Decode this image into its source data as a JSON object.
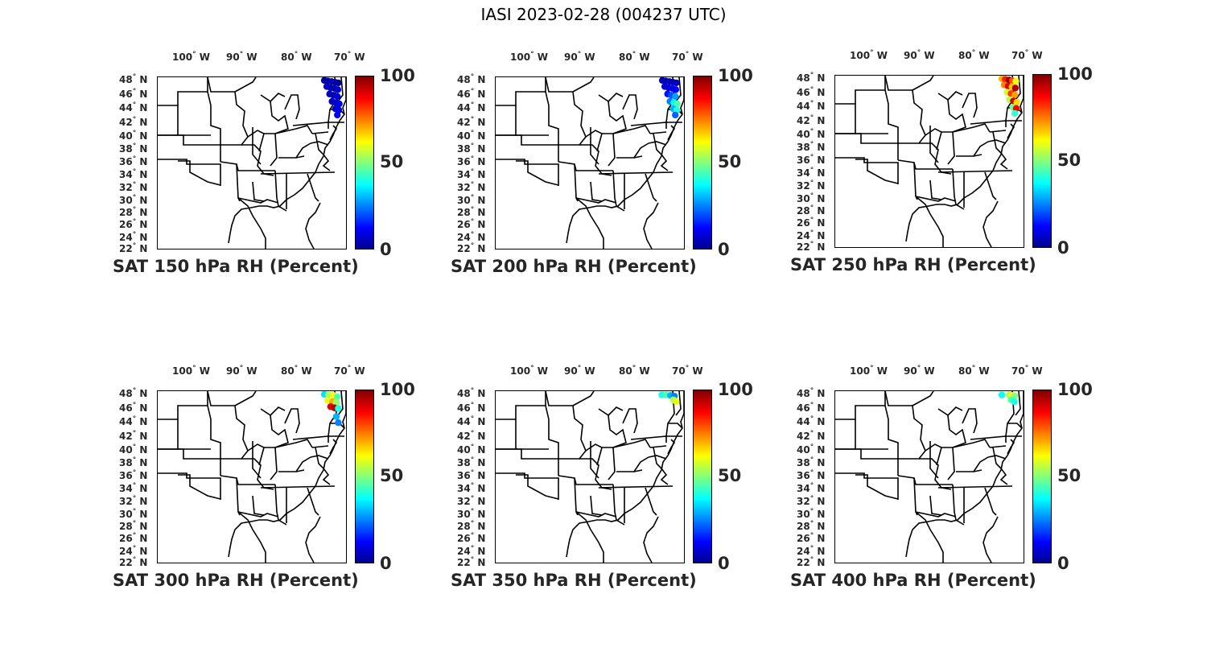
{
  "title": "IASI 2023-02-28 (004237 UTC)",
  "lon_ticks": [
    {
      "deg": "100",
      "hemi": "W"
    },
    {
      "deg": "90",
      "hemi": "W"
    },
    {
      "deg": "80",
      "hemi": "W"
    },
    {
      "deg": "70",
      "hemi": "W"
    }
  ],
  "lat_ticks": [
    {
      "deg": "48",
      "hemi": "N"
    },
    {
      "deg": "46",
      "hemi": "N"
    },
    {
      "deg": "44",
      "hemi": "N"
    },
    {
      "deg": "42",
      "hemi": "N"
    },
    {
      "deg": "40",
      "hemi": "N"
    },
    {
      "deg": "38",
      "hemi": "N"
    },
    {
      "deg": "36",
      "hemi": "N"
    },
    {
      "deg": "34",
      "hemi": "N"
    },
    {
      "deg": "32",
      "hemi": "N"
    },
    {
      "deg": "30",
      "hemi": "N"
    },
    {
      "deg": "28",
      "hemi": "N"
    },
    {
      "deg": "26",
      "hemi": "N"
    },
    {
      "deg": "24",
      "hemi": "N"
    },
    {
      "deg": "22",
      "hemi": "N"
    }
  ],
  "colorbar": {
    "labels": [
      "100",
      "50",
      "0"
    ],
    "range": [
      0,
      100
    ],
    "colormap": "jet"
  },
  "panels": [
    {
      "title": "SAT 150 hPa RH (Percent)"
    },
    {
      "title": "SAT 200 hPa RH (Percent)"
    },
    {
      "title": "SAT 250 hPa RH (Percent)"
    },
    {
      "title": "SAT 300 hPa RH (Percent)"
    },
    {
      "title": "SAT 350 hPa RH (Percent)"
    },
    {
      "title": "SAT 400 hPa RH (Percent)"
    }
  ],
  "chart_data": [
    {
      "type": "scatter",
      "level_hPa": 150,
      "series": [
        {
          "values": [
            {
              "lon": -71.5,
              "lat": 49.2,
              "rh": 3
            },
            {
              "lon": -70.8,
              "lat": 49.1,
              "rh": 4
            },
            {
              "lon": -70.0,
              "lat": 49.0,
              "rh": 5
            },
            {
              "lon": -69.3,
              "lat": 48.9,
              "rh": 4
            },
            {
              "lon": -68.6,
              "lat": 48.8,
              "rh": 3
            },
            {
              "lon": -71.0,
              "lat": 48.2,
              "rh": 6
            },
            {
              "lon": -70.2,
              "lat": 48.0,
              "rh": 5
            },
            {
              "lon": -69.4,
              "lat": 47.9,
              "rh": 4
            },
            {
              "lon": -68.7,
              "lat": 47.7,
              "rh": 7
            },
            {
              "lon": -70.4,
              "lat": 47.0,
              "rh": 6
            },
            {
              "lon": -69.6,
              "lat": 46.8,
              "rh": 5
            },
            {
              "lon": -68.8,
              "lat": 46.6,
              "rh": 8
            },
            {
              "lon": -69.9,
              "lat": 45.8,
              "rh": 6
            },
            {
              "lon": -69.1,
              "lat": 45.6,
              "rh": 7
            },
            {
              "lon": -68.4,
              "lat": 45.4,
              "rh": 10
            },
            {
              "lon": -69.2,
              "lat": 44.6,
              "rh": 8
            },
            {
              "lon": -68.5,
              "lat": 44.4,
              "rh": 9
            },
            {
              "lon": -68.8,
              "lat": 43.6,
              "rh": 12
            }
          ]
        }
      ]
    },
    {
      "type": "scatter",
      "level_hPa": 200,
      "series": [
        {
          "values": [
            {
              "lon": -71.5,
              "lat": 49.2,
              "rh": 5
            },
            {
              "lon": -70.8,
              "lat": 49.1,
              "rh": 6
            },
            {
              "lon": -70.0,
              "lat": 49.0,
              "rh": 7
            },
            {
              "lon": -69.3,
              "lat": 48.9,
              "rh": 5
            },
            {
              "lon": -68.6,
              "lat": 48.8,
              "rh": 6
            },
            {
              "lon": -71.0,
              "lat": 48.2,
              "rh": 8
            },
            {
              "lon": -70.2,
              "lat": 48.0,
              "rh": 9
            },
            {
              "lon": -69.4,
              "lat": 47.9,
              "rh": 10
            },
            {
              "lon": -68.7,
              "lat": 47.7,
              "rh": 12
            },
            {
              "lon": -70.4,
              "lat": 47.0,
              "rh": 14
            },
            {
              "lon": -69.6,
              "lat": 46.8,
              "rh": 20
            },
            {
              "lon": -68.8,
              "lat": 46.6,
              "rh": 28
            },
            {
              "lon": -69.9,
              "lat": 45.8,
              "rh": 25
            },
            {
              "lon": -69.1,
              "lat": 45.6,
              "rh": 38
            },
            {
              "lon": -68.4,
              "lat": 45.4,
              "rh": 45
            },
            {
              "lon": -69.2,
              "lat": 44.6,
              "rh": 30
            },
            {
              "lon": -68.5,
              "lat": 44.4,
              "rh": 40
            },
            {
              "lon": -68.8,
              "lat": 43.6,
              "rh": 22
            }
          ]
        }
      ]
    },
    {
      "type": "scatter",
      "level_hPa": 250,
      "series": [
        {
          "values": [
            {
              "lon": -71.5,
              "lat": 49.2,
              "rh": 70
            },
            {
              "lon": -70.8,
              "lat": 49.1,
              "rh": 85
            },
            {
              "lon": -70.0,
              "lat": 49.0,
              "rh": 98
            },
            {
              "lon": -69.3,
              "lat": 48.9,
              "rh": 80
            },
            {
              "lon": -68.6,
              "lat": 48.8,
              "rh": 62
            },
            {
              "lon": -71.0,
              "lat": 48.2,
              "rh": 75
            },
            {
              "lon": -70.2,
              "lat": 48.0,
              "rh": 90
            },
            {
              "lon": -69.4,
              "lat": 47.9,
              "rh": 68
            },
            {
              "lon": -68.7,
              "lat": 47.7,
              "rh": 95
            },
            {
              "lon": -70.4,
              "lat": 47.0,
              "rh": 58
            },
            {
              "lon": -69.6,
              "lat": 46.8,
              "rh": 82
            },
            {
              "lon": -68.8,
              "lat": 46.6,
              "rh": 72
            },
            {
              "lon": -69.9,
              "lat": 45.8,
              "rh": 55
            },
            {
              "lon": -69.1,
              "lat": 45.6,
              "rh": 92
            },
            {
              "lon": -68.4,
              "lat": 45.4,
              "rh": 66
            },
            {
              "lon": -69.2,
              "lat": 44.6,
              "rh": 48
            },
            {
              "lon": -68.5,
              "lat": 44.4,
              "rh": 88
            },
            {
              "lon": -68.8,
              "lat": 43.6,
              "rh": 42
            }
          ]
        }
      ]
    },
    {
      "type": "scatter",
      "level_hPa": 300,
      "series": [
        {
          "values": [
            {
              "lon": -71.5,
              "lat": 49.2,
              "rh": 35
            },
            {
              "lon": -70.6,
              "lat": 49.1,
              "rh": 55
            },
            {
              "lon": -69.6,
              "lat": 49.0,
              "rh": 62
            },
            {
              "lon": -68.8,
              "lat": 48.8,
              "rh": 45
            },
            {
              "lon": -70.8,
              "lat": 48.2,
              "rh": 60
            },
            {
              "lon": -69.8,
              "lat": 48.0,
              "rh": 70
            },
            {
              "lon": -69.0,
              "lat": 47.9,
              "rh": 52
            },
            {
              "lon": -70.2,
              "lat": 47.2,
              "rh": 90
            },
            {
              "lon": -69.4,
              "lat": 47.0,
              "rh": 95
            },
            {
              "lon": -68.6,
              "lat": 46.9,
              "rh": 40
            },
            {
              "lon": -69.0,
              "lat": 45.6,
              "rh": 30
            },
            {
              "lon": -68.6,
              "lat": 44.6,
              "rh": 25
            }
          ]
        }
      ]
    },
    {
      "type": "scatter",
      "level_hPa": 350,
      "series": [
        {
          "values": [
            {
              "lon": -71.6,
              "lat": 49.1,
              "rh": 40
            },
            {
              "lon": -70.7,
              "lat": 49.1,
              "rh": 45
            },
            {
              "lon": -69.8,
              "lat": 49.0,
              "rh": 30
            },
            {
              "lon": -69.0,
              "lat": 48.9,
              "rh": 25
            },
            {
              "lon": -69.2,
              "lat": 48.3,
              "rh": 55
            },
            {
              "lon": -68.6,
              "lat": 48.0,
              "rh": 60
            }
          ]
        }
      ]
    },
    {
      "type": "scatter",
      "level_hPa": 400,
      "series": [
        {
          "values": [
            {
              "lon": -71.5,
              "lat": 49.1,
              "rh": 38
            },
            {
              "lon": -70.0,
              "lat": 49.1,
              "rh": 55
            },
            {
              "lon": -69.4,
              "lat": 49.0,
              "rh": 62
            },
            {
              "lon": -68.8,
              "lat": 48.9,
              "rh": 50
            },
            {
              "lon": -69.6,
              "lat": 48.3,
              "rh": 45
            },
            {
              "lon": -68.9,
              "lat": 48.0,
              "rh": 40
            }
          ]
        }
      ]
    }
  ]
}
